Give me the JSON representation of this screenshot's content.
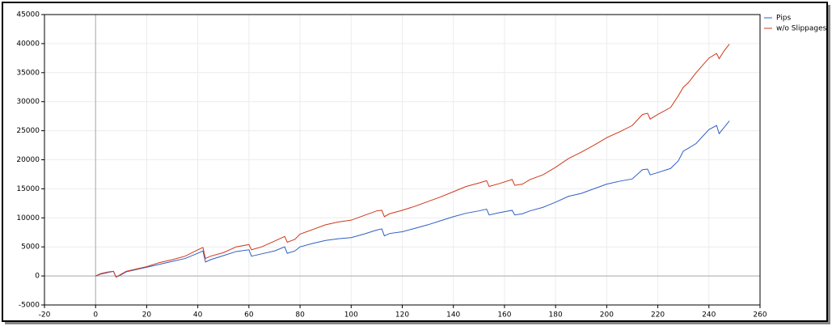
{
  "chart_data": {
    "type": "line",
    "x": [
      0,
      2,
      5,
      7,
      8,
      10,
      12,
      15,
      20,
      25,
      30,
      35,
      40,
      42,
      43,
      45,
      50,
      55,
      60,
      61,
      65,
      70,
      74,
      75,
      78,
      80,
      85,
      90,
      95,
      100,
      105,
      110,
      112,
      113,
      115,
      120,
      125,
      130,
      135,
      140,
      145,
      150,
      153,
      154,
      158,
      163,
      164,
      167,
      170,
      175,
      180,
      185,
      190,
      195,
      200,
      205,
      210,
      214,
      216,
      217,
      220,
      225,
      228,
      230,
      232,
      235,
      240,
      243,
      244,
      246,
      248
    ],
    "series": [
      {
        "name": "Pips",
        "color": "#2f5fc4",
        "values": [
          0,
          300,
          600,
          800,
          -200,
          200,
          700,
          1000,
          1500,
          2000,
          2500,
          3000,
          3900,
          4300,
          2400,
          2800,
          3500,
          4200,
          4500,
          3400,
          3800,
          4300,
          5000,
          3900,
          4300,
          5000,
          5600,
          6100,
          6400,
          6600,
          7200,
          7900,
          8100,
          6900,
          7300,
          7600,
          8200,
          8800,
          9500,
          10200,
          10800,
          11200,
          11500,
          10500,
          10900,
          11300,
          10500,
          10700,
          11200,
          11800,
          12700,
          13700,
          14200,
          15000,
          15800,
          16300,
          16700,
          18300,
          18400,
          17400,
          17800,
          18500,
          19800,
          21500,
          22000,
          22800,
          25200,
          25900,
          24500,
          25600,
          26700
        ]
      },
      {
        "name": "w/o Slippages",
        "color": "#d0371a",
        "values": [
          0,
          400,
          700,
          800,
          -200,
          300,
          800,
          1100,
          1600,
          2300,
          2800,
          3400,
          4500,
          4900,
          3000,
          3400,
          4000,
          5000,
          5400,
          4500,
          5000,
          6000,
          6800,
          5800,
          6300,
          7200,
          8000,
          8800,
          9300,
          9600,
          10400,
          11200,
          11300,
          10200,
          10700,
          11300,
          12000,
          12800,
          13600,
          14500,
          15400,
          16000,
          16400,
          15400,
          15900,
          16600,
          15600,
          15800,
          16600,
          17400,
          18700,
          20200,
          21300,
          22500,
          23800,
          24800,
          25900,
          27800,
          28000,
          27000,
          27800,
          29000,
          31000,
          32500,
          33300,
          35000,
          37500,
          38300,
          37400,
          38800,
          39900
        ]
      }
    ],
    "xlim": [
      -20,
      260
    ],
    "xticks": [
      -20,
      0,
      20,
      40,
      60,
      80,
      100,
      120,
      140,
      160,
      180,
      200,
      220,
      240,
      260
    ],
    "ylim": [
      -5000,
      45000
    ],
    "yticks": [
      -5000,
      0,
      5000,
      10000,
      15000,
      20000,
      25000,
      30000,
      35000,
      40000,
      45000
    ],
    "grid": true,
    "legend": "right"
  }
}
